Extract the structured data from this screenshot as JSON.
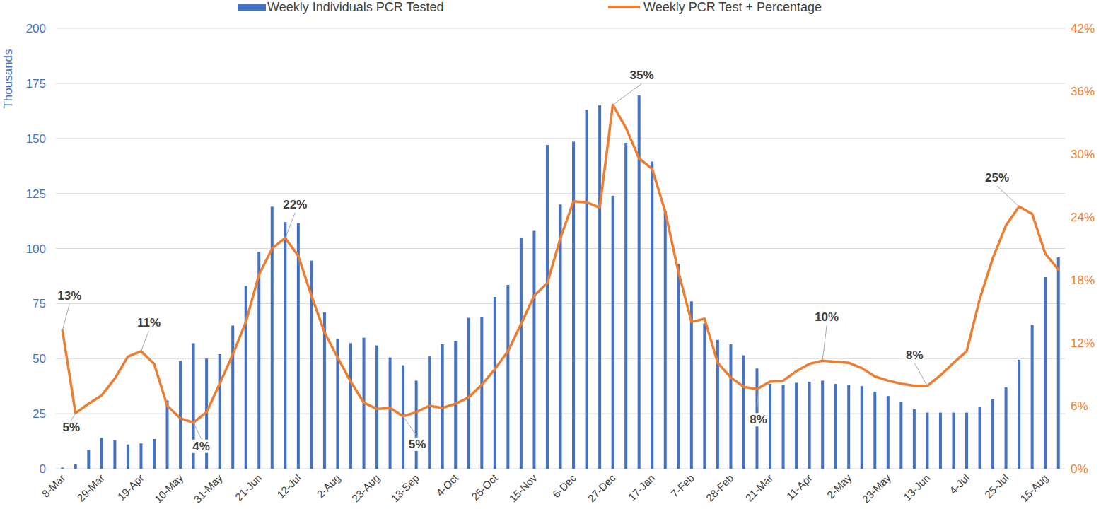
{
  "chart_data": {
    "type": "bar",
    "y_label": "Thousands",
    "categories": [
      "8-Mar",
      null,
      null,
      "29-Mar",
      null,
      null,
      "19-Apr",
      null,
      null,
      "10-May",
      null,
      null,
      "31-May",
      null,
      null,
      "21-Jun",
      null,
      null,
      "12-Jul",
      null,
      null,
      "2-Aug",
      null,
      null,
      "23-Aug",
      null,
      null,
      "13-Sep",
      null,
      null,
      "4-Oct",
      null,
      null,
      "25-Oct",
      null,
      null,
      "15-Nov",
      null,
      null,
      "6-Dec",
      null,
      null,
      "27-Dec",
      null,
      null,
      "17-Jan",
      null,
      null,
      "7-Feb",
      null,
      null,
      "28-Feb",
      null,
      null,
      "21-Mar",
      null,
      null,
      "11-Apr",
      null,
      null,
      "2-May",
      null,
      null,
      "23-May",
      null,
      null,
      "13-Jun",
      null,
      null,
      "4-Jul",
      null,
      null,
      "25-Jul",
      null,
      null,
      "15-Aug",
      null
    ],
    "series": [
      {
        "name": "Weekly Individuals PCR Tested",
        "type": "bar",
        "color": "#4472c4",
        "values": [
          0.5,
          2,
          8.5,
          14,
          13,
          11,
          11.5,
          13.5,
          31,
          49,
          57,
          50,
          52,
          65,
          83,
          98.5,
          119,
          112,
          111.5,
          94.5,
          71,
          59,
          57,
          59.5,
          56,
          50.5,
          47,
          40,
          51,
          56.5,
          58,
          68.5,
          69,
          78,
          83.5,
          105,
          108,
          147,
          120,
          148.5,
          163,
          165,
          124,
          148,
          169.5,
          139.5,
          117,
          93,
          76,
          66,
          58.5,
          56.5,
          51.5,
          45.5,
          38.5,
          38,
          39,
          39.5,
          40,
          38.5,
          38,
          37.5,
          35,
          33,
          30.5,
          27,
          25.5,
          25.5,
          25.5,
          25.5,
          28,
          31.5,
          37,
          49.5,
          65.5,
          87,
          96
        ]
      },
      {
        "name": "Weekly PCR Test + Percentage",
        "type": "line",
        "axis": "y2",
        "color": "#ed7d31",
        "values": [
          13.2,
          5.3,
          6.2,
          7.0,
          8.6,
          10.7,
          11.2,
          10.0,
          6.0,
          4.8,
          4.4,
          5.4,
          8.1,
          10.9,
          14.0,
          18.5,
          21.0,
          22.0,
          20.3,
          16.5,
          13.0,
          10.6,
          8.3,
          6.3,
          5.7,
          5.8,
          5.0,
          5.4,
          6.0,
          5.8,
          6.2,
          6.8,
          8.0,
          9.5,
          11.2,
          13.8,
          16.5,
          17.7,
          22.0,
          25.5,
          25.4,
          24.9,
          34.7,
          32.5,
          29.6,
          28.6,
          24.5,
          18.8,
          14.0,
          14.3,
          10.1,
          8.7,
          7.8,
          7.6,
          8.3,
          8.4,
          9.3,
          10.0,
          10.3,
          10.2,
          10.1,
          9.6,
          8.8,
          8.4,
          8.1,
          7.9,
          7.9,
          8.9,
          10.1,
          11.2,
          16.2,
          20.1,
          23.2,
          25.0,
          24.3,
          20.5,
          19.0
        ]
      }
    ],
    "annotations": [
      {
        "index": 0,
        "text": "13%"
      },
      {
        "index": 1,
        "text": "5%"
      },
      {
        "index": 6,
        "text": "11%"
      },
      {
        "index": 10,
        "text": "4%"
      },
      {
        "index": 17,
        "text": "22%"
      },
      {
        "index": 26,
        "text": "5%"
      },
      {
        "index": 42,
        "text": "35%"
      },
      {
        "index": 53,
        "text": "8%"
      },
      {
        "index": 58,
        "text": "10%"
      },
      {
        "index": 66,
        "text": "8%"
      },
      {
        "index": 73,
        "text": "25%"
      }
    ],
    "ylim": [
      0,
      200
    ],
    "yticks": [
      0,
      25,
      50,
      75,
      100,
      125,
      150,
      175,
      200
    ],
    "y2lim": [
      0,
      42
    ],
    "y2ticks": [
      {
        "value": 0,
        "label": "0%"
      },
      {
        "value": 6,
        "label": "6%"
      },
      {
        "value": 12,
        "label": "12%"
      },
      {
        "value": 18,
        "label": "18%"
      },
      {
        "value": 24,
        "label": "24%"
      },
      {
        "value": 30,
        "label": "30%"
      },
      {
        "value": 36,
        "label": "36%"
      },
      {
        "value": 42,
        "label": "42%"
      }
    ],
    "grid": true,
    "legend": "top"
  }
}
